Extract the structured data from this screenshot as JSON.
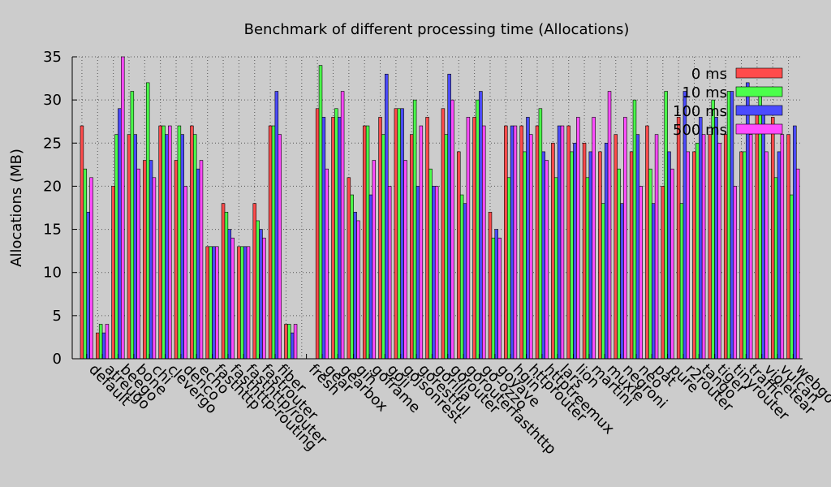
{
  "chart_data": {
    "type": "bar",
    "title": "Benchmark of different processing time (Allocations)",
    "xlabel": "",
    "ylabel": "Allocations (MB)",
    "ylim": [
      0,
      35
    ],
    "yticks": [
      0,
      5,
      10,
      15,
      20,
      25,
      30,
      35
    ],
    "grid": true,
    "legend_position": "top-right",
    "categories": [
      "default",
      "atreugo",
      "beego",
      "bone",
      "chi",
      "clevergo",
      "denco",
      "echo",
      "fasthttp",
      "fasthttp-routing",
      "fasthttp/router",
      "fastrouter",
      "fiber",
      "",
      "fresh",
      "gear",
      "gearbox",
      "gin",
      "goframe",
      "goji",
      "gojsonrest",
      "gorestful",
      "gorilla",
      "gorouter",
      "gorouterfasthttp",
      "go-ozzo",
      "goyave",
      "hgin",
      "httprouter",
      "httptreemux",
      "lars",
      "lion",
      "martini",
      "muxie",
      "negroni",
      "neo",
      "pat",
      "pure",
      "r2router",
      "tango",
      "tiger",
      "tinyrouter",
      "traffic",
      "violetear",
      "vulcan",
      "webgo"
    ],
    "series": [
      {
        "name": "0 ms",
        "color": "#ff4b4b",
        "values": [
          27,
          3,
          20,
          26,
          23,
          27,
          23,
          27,
          13,
          18,
          13,
          18,
          27,
          4,
          null,
          29,
          28,
          21,
          27,
          28,
          29,
          26,
          28,
          29,
          24,
          28,
          17,
          27,
          27,
          27,
          25,
          27,
          25,
          24,
          26,
          24,
          27,
          20,
          28,
          24,
          26,
          26,
          24,
          29,
          28,
          26
        ]
      },
      {
        "name": "10 ms",
        "color": "#4bff4b",
        "values": [
          22,
          4,
          26,
          31,
          32,
          27,
          27,
          26,
          13,
          17,
          13,
          16,
          27,
          4,
          null,
          34,
          29,
          19,
          27,
          26,
          29,
          30,
          22,
          26,
          19,
          30,
          14,
          21,
          24,
          29,
          21,
          24,
          21,
          18,
          22,
          30,
          22,
          31,
          18,
          25,
          30,
          31,
          24,
          31,
          21,
          19
        ]
      },
      {
        "name": "100 ms",
        "color": "#4b4bff",
        "values": [
          17,
          3,
          29,
          26,
          23,
          26,
          26,
          22,
          13,
          15,
          13,
          15,
          31,
          3,
          null,
          28,
          28,
          17,
          19,
          33,
          29,
          20,
          20,
          33,
          18,
          31,
          15,
          27,
          28,
          24,
          27,
          25,
          24,
          25,
          18,
          26,
          18,
          24,
          31,
          28,
          28,
          31,
          32,
          29,
          24,
          27
        ]
      },
      {
        "name": "500 ms",
        "color": "#ff4bff",
        "values": [
          21,
          4,
          35,
          22,
          21,
          27,
          20,
          23,
          13,
          14,
          13,
          14,
          26,
          4,
          null,
          22,
          31,
          16,
          23,
          20,
          23,
          27,
          20,
          30,
          28,
          27,
          14,
          27,
          26,
          23,
          27,
          28,
          28,
          31,
          28,
          20,
          26,
          22,
          24,
          26,
          25,
          20,
          26,
          24,
          26,
          22
        ]
      }
    ]
  }
}
